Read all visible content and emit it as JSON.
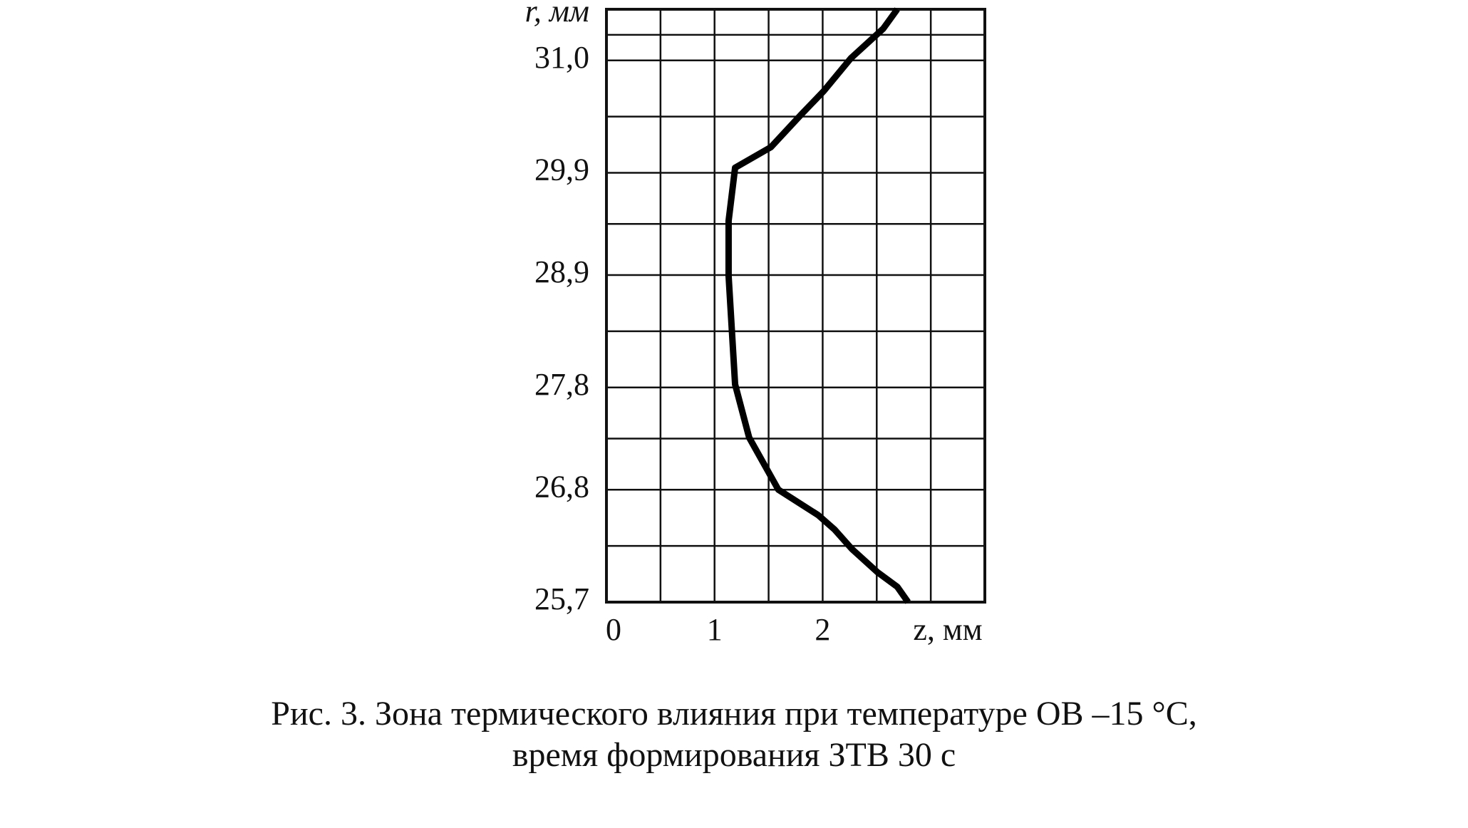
{
  "chart_data": {
    "type": "line",
    "caption": [
      "Рис. 3. Зона термического влияния при температуре ОВ –15 °С,",
      "время формирования ЗТВ 30 с"
    ],
    "xlabel": "z, мм",
    "ylabel": "r, мм",
    "x": [
      2.79,
      2.69,
      2.51,
      2.27,
      2.11,
      1.96,
      1.59,
      1.32,
      1.19,
      1.16,
      1.13,
      1.13,
      1.19,
      1.52,
      1.81,
      2.01,
      2.26,
      2.56,
      2.69
    ],
    "series": [
      {
        "color": "#000000",
        "values": [
          25.7,
          25.85,
          25.99,
          26.22,
          26.41,
          26.55,
          26.8,
          27.31,
          27.83,
          28.36,
          28.89,
          29.43,
          29.95,
          30.15,
          30.48,
          30.7,
          31.02,
          31.31,
          31.5
        ]
      }
    ],
    "xlim": [
      0,
      3.5
    ],
    "ylim": [
      25.7,
      31.5
    ],
    "xticks": [
      0,
      1,
      2
    ],
    "yticks": [
      {
        "value": 25.7,
        "label": "25,7"
      },
      {
        "value": 26.8,
        "label": "26,8"
      },
      {
        "value": 27.8,
        "label": "27,8"
      },
      {
        "value": 28.9,
        "label": "28,9"
      },
      {
        "value": 29.9,
        "label": "29,9"
      },
      {
        "value": 31.0,
        "label": "31,0"
      }
    ],
    "grid": true,
    "xgrid_step": 0.5
  }
}
